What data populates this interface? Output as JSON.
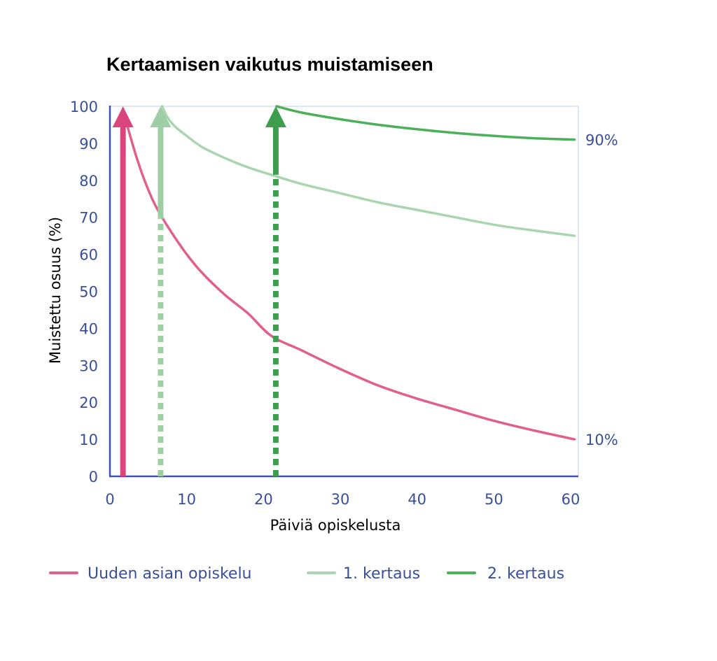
{
  "colors": {
    "text": "#3a4f9a",
    "axis": "#3f51b5",
    "frame": "#dde6f3",
    "pink": "#e0608d",
    "pink_arrow": "#d9457d",
    "light_green": "#a9d6b0",
    "light_green_arrow": "#9fcea6",
    "green": "#4caf5a",
    "green_arrow": "#3e9e4d"
  },
  "chart_data": {
    "type": "line",
    "title": "Kertaamisen vaikutus muistamiseen",
    "xlabel": "Päiviä opiskelusta",
    "ylabel": "Muistettu osuus (%)",
    "xlim": [
      0,
      61
    ],
    "ylim": [
      0,
      100
    ],
    "xticks": [
      0,
      10,
      20,
      30,
      40,
      50,
      60
    ],
    "yticks": [
      0,
      10,
      20,
      30,
      40,
      50,
      60,
      70,
      80,
      90,
      100
    ],
    "grid": false,
    "legend_position": "bottom",
    "series": [
      {
        "name": "Uuden asian opiskelu",
        "color_key": "pink",
        "x": [
          1.7,
          2.5,
          3.5,
          4.5,
          5.5,
          6.5,
          8,
          10,
          12,
          15,
          18,
          21,
          25,
          30,
          35,
          40,
          45,
          50,
          55,
          60.5
        ],
        "y": [
          99,
          93,
          86,
          80,
          75,
          71,
          66,
          60,
          55,
          49,
          44,
          38,
          34,
          29,
          24.5,
          21,
          18,
          15,
          12.5,
          10
        ]
      },
      {
        "name": "1. kertaus",
        "color_key": "light_green",
        "x": [
          6.8,
          7.5,
          8.5,
          10,
          12,
          15,
          18,
          21,
          25,
          30,
          35,
          40,
          45,
          50,
          55,
          60.5
        ],
        "y": [
          100,
          97,
          94.5,
          92,
          89,
          86,
          83.5,
          81.5,
          79,
          76.5,
          74,
          72,
          70,
          68,
          66.5,
          65
        ]
      },
      {
        "name": "2. kertaus",
        "color_key": "green",
        "x": [
          21.7,
          25,
          30,
          35,
          40,
          45,
          50,
          55,
          60.5
        ],
        "y": [
          100,
          98.3,
          96.5,
          95,
          93.8,
          92.8,
          92,
          91.4,
          91
        ]
      }
    ],
    "review_arrows": [
      {
        "x": 1.7,
        "from": 0,
        "to": 100,
        "dashed_to": 0,
        "color_key": "pink_arrow"
      },
      {
        "x": 6.6,
        "from": 70,
        "to": 100,
        "dashed_to": 70,
        "color_key": "light_green_arrow"
      },
      {
        "x": 21.6,
        "from": 81.5,
        "to": 100,
        "dashed_to": 81.5,
        "color_key": "green_arrow"
      }
    ],
    "end_labels": [
      {
        "text": "90%",
        "y": 91
      },
      {
        "text": "10%",
        "y": 10
      }
    ]
  }
}
